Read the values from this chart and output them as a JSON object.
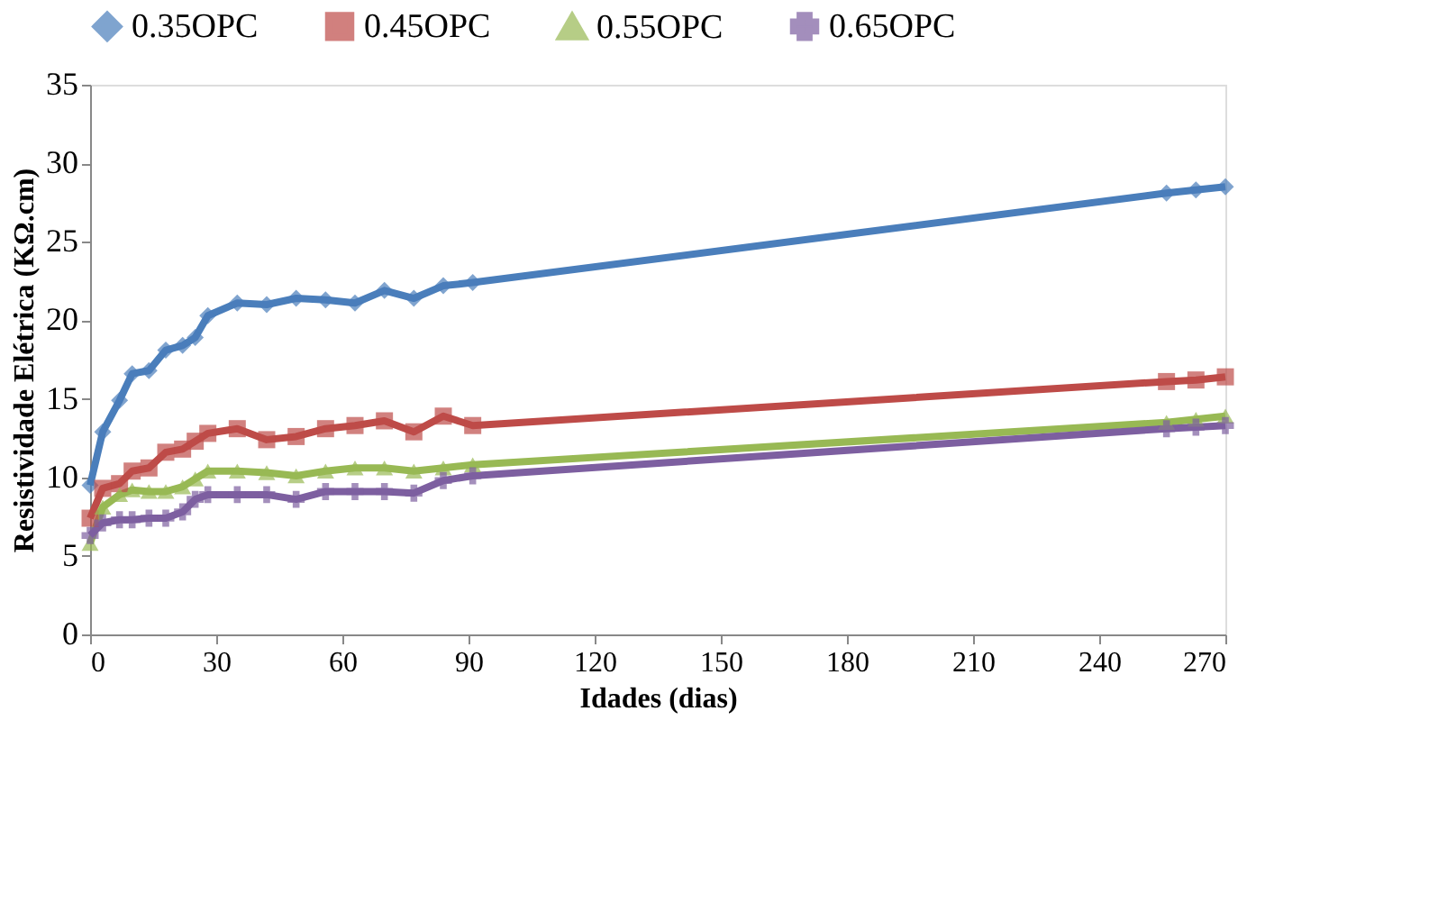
{
  "chart_data": {
    "type": "line",
    "xlabel": "Idades (dias)",
    "ylabel": "Resistividade Elétrica (KΩ.cm)",
    "x": [
      0,
      3,
      7,
      10,
      14,
      18,
      22,
      25,
      28,
      35,
      42,
      49,
      56,
      63,
      70,
      77,
      84,
      91,
      256,
      263,
      270
    ],
    "series": [
      {
        "name": "0.35OPC",
        "color": "#4a7ebb",
        "marker": "diamond",
        "values": [
          9.5,
          12.9,
          14.9,
          16.6,
          16.8,
          18.1,
          18.4,
          18.9,
          20.3,
          21.1,
          21.0,
          21.4,
          21.3,
          21.1,
          21.9,
          21.4,
          22.2,
          22.4,
          28.1,
          28.3,
          28.5
        ]
      },
      {
        "name": "0.45OPC",
        "color": "#be4b48",
        "marker": "square",
        "values": [
          7.4,
          9.3,
          9.6,
          10.4,
          10.6,
          11.6,
          11.8,
          12.3,
          12.8,
          13.1,
          12.4,
          12.6,
          13.1,
          13.3,
          13.6,
          12.9,
          13.9,
          13.3,
          16.1,
          16.2,
          16.4
        ]
      },
      {
        "name": "0.55OPC",
        "color": "#98b954",
        "marker": "triangle",
        "values": [
          5.8,
          8.1,
          8.9,
          9.2,
          9.1,
          9.1,
          9.4,
          9.9,
          10.4,
          10.4,
          10.3,
          10.1,
          10.4,
          10.6,
          10.6,
          10.4,
          10.6,
          10.8,
          13.5,
          13.7,
          13.9
        ]
      },
      {
        "name": "0.65OPC",
        "color": "#7d5fa0",
        "marker": "cross",
        "values": [
          6.3,
          7.1,
          7.3,
          7.3,
          7.4,
          7.4,
          7.8,
          8.6,
          8.9,
          8.9,
          8.9,
          8.6,
          9.1,
          9.1,
          9.1,
          9.0,
          9.8,
          10.1,
          13.1,
          13.2,
          13.3
        ]
      }
    ],
    "xlim": [
      0,
      270
    ],
    "xticks": [
      0,
      30,
      60,
      90,
      120,
      150,
      180,
      210,
      240,
      270
    ],
    "ylim": [
      0,
      35
    ],
    "yticks": [
      0,
      5,
      10,
      15,
      20,
      25,
      30,
      35
    ],
    "grid": false,
    "legend": "top",
    "line_style": "solid"
  }
}
